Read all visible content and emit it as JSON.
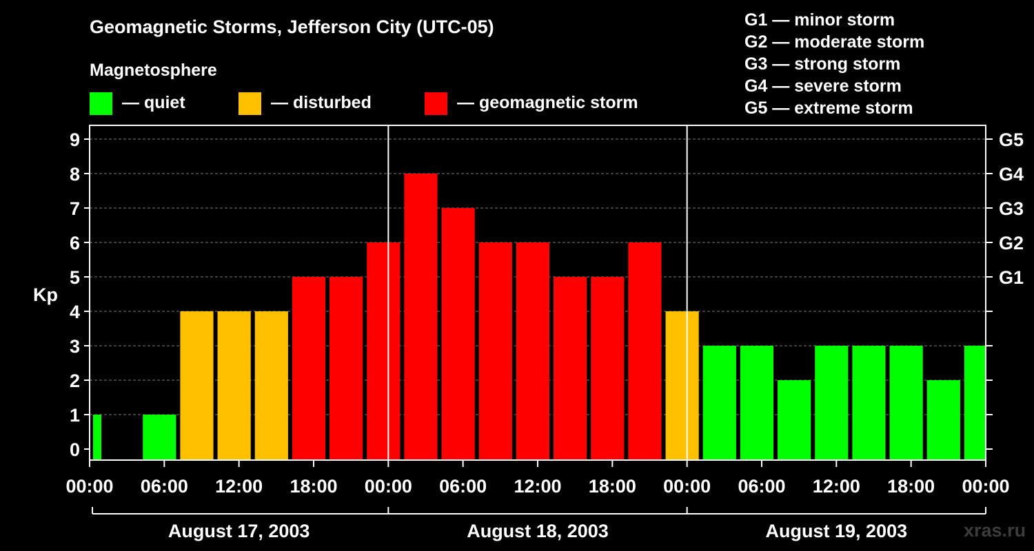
{
  "chart_data": {
    "type": "bar",
    "title": "Geomagnetic Storms, Jefferson City (UTC-05)",
    "ylabel": "Kp",
    "ylim": [
      0,
      9
    ],
    "y_ticks": [
      "0",
      "1",
      "2",
      "3",
      "4",
      "5",
      "6",
      "7",
      "8",
      "9"
    ],
    "right_ticks": [
      {
        "kp": 5,
        "label": "G1"
      },
      {
        "kp": 6,
        "label": "G2"
      },
      {
        "kp": 7,
        "label": "G3"
      },
      {
        "kp": 8,
        "label": "G4"
      },
      {
        "kp": 9,
        "label": "G5"
      }
    ],
    "x_tick_labels": [
      "00:00",
      "06:00",
      "12:00",
      "18:00",
      "00:00",
      "06:00",
      "12:00",
      "18:00",
      "00:00",
      "06:00",
      "12:00",
      "18:00",
      "00:00"
    ],
    "x_tick_hours": [
      0,
      6,
      12,
      18,
      24,
      30,
      36,
      42,
      48,
      54,
      60,
      66,
      72
    ],
    "day_boundaries_hours": [
      24,
      48
    ],
    "days": [
      {
        "label": "August 17, 2003",
        "start_hour": 0,
        "end_hour": 24
      },
      {
        "label": "August 18, 2003",
        "start_hour": 24,
        "end_hour": 48
      },
      {
        "label": "August 19, 2003",
        "start_hour": 48,
        "end_hour": 72
      }
    ],
    "bars": [
      {
        "start_hour": 0,
        "end_hour": 1,
        "kp": 1,
        "status": "quiet"
      },
      {
        "start_hour": 1,
        "end_hour": 4,
        "kp": 0,
        "status": "quiet"
      },
      {
        "start_hour": 4,
        "end_hour": 7,
        "kp": 1,
        "status": "quiet"
      },
      {
        "start_hour": 7,
        "end_hour": 10,
        "kp": 4,
        "status": "disturbed"
      },
      {
        "start_hour": 10,
        "end_hour": 13,
        "kp": 4,
        "status": "disturbed"
      },
      {
        "start_hour": 13,
        "end_hour": 16,
        "kp": 4,
        "status": "disturbed"
      },
      {
        "start_hour": 16,
        "end_hour": 19,
        "kp": 5,
        "status": "storm"
      },
      {
        "start_hour": 19,
        "end_hour": 22,
        "kp": 5,
        "status": "storm"
      },
      {
        "start_hour": 22,
        "end_hour": 25,
        "kp": 6,
        "status": "storm"
      },
      {
        "start_hour": 25,
        "end_hour": 28,
        "kp": 8,
        "status": "storm"
      },
      {
        "start_hour": 28,
        "end_hour": 31,
        "kp": 7,
        "status": "storm"
      },
      {
        "start_hour": 31,
        "end_hour": 34,
        "kp": 6,
        "status": "storm"
      },
      {
        "start_hour": 34,
        "end_hour": 37,
        "kp": 6,
        "status": "storm"
      },
      {
        "start_hour": 37,
        "end_hour": 40,
        "kp": 5,
        "status": "storm"
      },
      {
        "start_hour": 40,
        "end_hour": 43,
        "kp": 5,
        "status": "storm"
      },
      {
        "start_hour": 43,
        "end_hour": 46,
        "kp": 6,
        "status": "storm"
      },
      {
        "start_hour": 46,
        "end_hour": 49,
        "kp": 4,
        "status": "disturbed"
      },
      {
        "start_hour": 49,
        "end_hour": 52,
        "kp": 3,
        "status": "quiet"
      },
      {
        "start_hour": 52,
        "end_hour": 55,
        "kp": 3,
        "status": "quiet"
      },
      {
        "start_hour": 55,
        "end_hour": 58,
        "kp": 2,
        "status": "quiet"
      },
      {
        "start_hour": 58,
        "end_hour": 61,
        "kp": 3,
        "status": "quiet"
      },
      {
        "start_hour": 61,
        "end_hour": 64,
        "kp": 3,
        "status": "quiet"
      },
      {
        "start_hour": 64,
        "end_hour": 67,
        "kp": 3,
        "status": "quiet"
      },
      {
        "start_hour": 67,
        "end_hour": 70,
        "kp": 2,
        "status": "quiet"
      },
      {
        "start_hour": 70,
        "end_hour": 72,
        "kp": 3,
        "status": "quiet"
      }
    ],
    "grid": true
  },
  "legend": {
    "heading": "Magnetosphere",
    "items": [
      {
        "key": "quiet",
        "label": "— quiet",
        "color": "#00ff00"
      },
      {
        "key": "disturbed",
        "label": "— disturbed",
        "color": "#ffc000"
      },
      {
        "key": "storm",
        "label": "— geomagnetic storm",
        "color": "#ff0000"
      }
    ]
  },
  "storm_scale": [
    "G1 — minor storm",
    "G2 — moderate storm",
    "G3 — strong storm",
    "G4 — severe storm",
    "G5 — extreme storm"
  ],
  "watermark": "xras.ru"
}
